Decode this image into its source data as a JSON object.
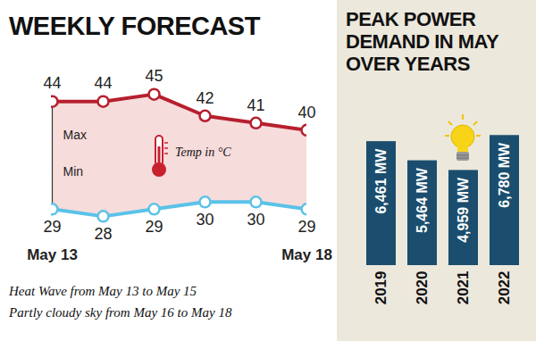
{
  "chart_data": [
    {
      "type": "line",
      "title": "WEEKLY FORECAST",
      "categories": [
        "May 13",
        null,
        null,
        null,
        null,
        "May 18"
      ],
      "series": [
        {
          "name": "Max",
          "color": "#b71f2e",
          "values": [
            44,
            44,
            45,
            42,
            41,
            40
          ]
        },
        {
          "name": "Min",
          "color": "#5bc2e8",
          "values": [
            29,
            28,
            29,
            30,
            30,
            29
          ]
        }
      ],
      "ylim": [
        25,
        48
      ],
      "yticks": [],
      "tick_labels": "x",
      "data_labels": true,
      "marker": "circle",
      "annotations": [
        "Temp in °C"
      ],
      "caption": [
        "Heat Wave from May 13 to May 15",
        "Partly cloudy sky from May 16 to May 18"
      ]
    },
    {
      "type": "bar",
      "title": "PEAK POWER DEMAND IN MAY OVER YEARS",
      "categories": [
        "2019",
        "2020",
        "2021",
        "2022"
      ],
      "values": [
        6461,
        5464,
        4959,
        6780
      ],
      "value_labels": [
        "6,461 MW",
        "5,464 MW",
        "4,959 MW",
        "6,780 MW"
      ],
      "color": "#1b4e6e",
      "ylim": [
        0,
        8700
      ],
      "yticks": [],
      "tick_labels": "x",
      "data_labels": true
    }
  ]
}
